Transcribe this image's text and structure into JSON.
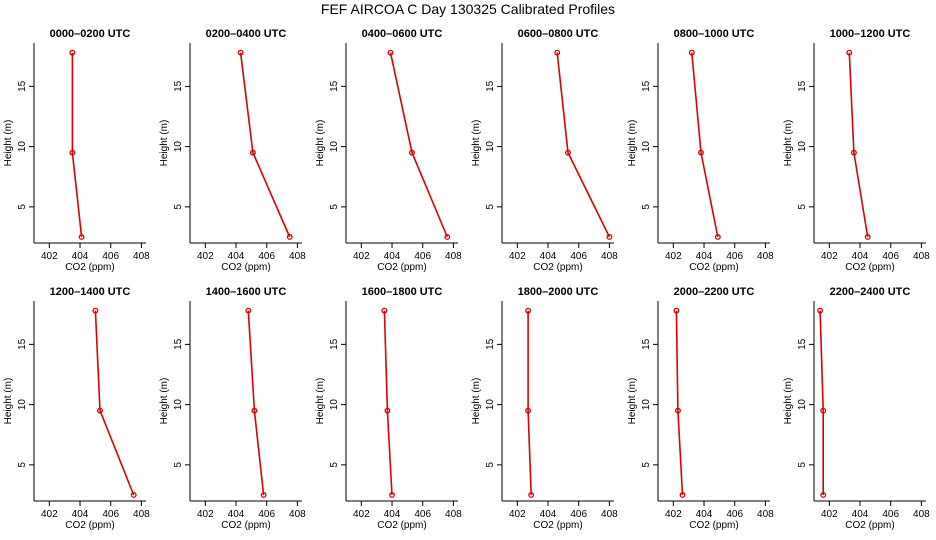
{
  "title": "FEF AIRCOA C  Day 130325  Calibrated Profiles",
  "colors": {
    "profile_line": "#dd0000",
    "axis": "#000000"
  },
  "chart_data": [
    {
      "type": "line",
      "title": "0000–0200 UTC",
      "xlabel": "CO2 (ppm)",
      "ylabel": "Height (m)",
      "xlim": [
        401,
        408.3
      ],
      "ylim": [
        2.0,
        18.6
      ],
      "xticks": [
        "402",
        "404",
        "406",
        "408"
      ],
      "yticks": [
        "5",
        "10",
        "15"
      ],
      "x": [
        404.1,
        403.5,
        403.5
      ],
      "y": [
        2.5,
        9.5,
        17.8
      ]
    },
    {
      "type": "line",
      "title": "0200–0400 UTC",
      "xlabel": "CO2 (ppm)",
      "ylabel": "Height (m)",
      "xlim": [
        401,
        408.3
      ],
      "ylim": [
        2.0,
        18.6
      ],
      "xticks": [
        "402",
        "404",
        "406",
        "408"
      ],
      "yticks": [
        "5",
        "10",
        "15"
      ],
      "x": [
        407.5,
        405.1,
        404.3
      ],
      "y": [
        2.5,
        9.5,
        17.8
      ]
    },
    {
      "type": "line",
      "title": "0400–0600 UTC",
      "xlabel": "CO2 (ppm)",
      "ylabel": "Height (m)",
      "xlim": [
        401,
        408.3
      ],
      "ylim": [
        2.0,
        18.6
      ],
      "xticks": [
        "402",
        "404",
        "406",
        "408"
      ],
      "yticks": [
        "5",
        "10",
        "15"
      ],
      "x": [
        407.6,
        405.3,
        403.9
      ],
      "y": [
        2.5,
        9.5,
        17.8
      ]
    },
    {
      "type": "line",
      "title": "0600–0800 UTC",
      "xlabel": "CO2 (ppm)",
      "ylabel": "Height (m)",
      "xlim": [
        401,
        408.3
      ],
      "ylim": [
        2.0,
        18.6
      ],
      "xticks": [
        "402",
        "404",
        "406",
        "408"
      ],
      "yticks": [
        "5",
        "10",
        "15"
      ],
      "x": [
        408.0,
        405.3,
        404.6
      ],
      "y": [
        2.5,
        9.5,
        17.8
      ]
    },
    {
      "type": "line",
      "title": "0800–1000 UTC",
      "xlabel": "CO2 (ppm)",
      "ylabel": "Height (m)",
      "xlim": [
        401,
        408.3
      ],
      "ylim": [
        2.0,
        18.6
      ],
      "xticks": [
        "402",
        "404",
        "406",
        "408"
      ],
      "yticks": [
        "5",
        "10",
        "15"
      ],
      "x": [
        404.9,
        403.8,
        403.2
      ],
      "y": [
        2.5,
        9.5,
        17.8
      ]
    },
    {
      "type": "line",
      "title": "1000–1200 UTC",
      "xlabel": "CO2 (ppm)",
      "ylabel": "Height (m)",
      "xlim": [
        401,
        408.3
      ],
      "ylim": [
        2.0,
        18.6
      ],
      "xticks": [
        "402",
        "404",
        "406",
        "408"
      ],
      "yticks": [
        "5",
        "10",
        "15"
      ],
      "x": [
        404.5,
        403.6,
        403.3
      ],
      "y": [
        2.5,
        9.5,
        17.8
      ]
    },
    {
      "type": "line",
      "title": "1200–1400 UTC",
      "xlabel": "CO2 (ppm)",
      "ylabel": "Height (m)",
      "xlim": [
        401,
        408.3
      ],
      "ylim": [
        2.0,
        18.6
      ],
      "xticks": [
        "402",
        "404",
        "406",
        "408"
      ],
      "yticks": [
        "5",
        "10",
        "15"
      ],
      "x": [
        407.5,
        405.3,
        405.0
      ],
      "y": [
        2.5,
        9.5,
        17.8
      ]
    },
    {
      "type": "line",
      "title": "1400–1600 UTC",
      "xlabel": "CO2 (ppm)",
      "ylabel": "Height (m)",
      "xlim": [
        401,
        408.3
      ],
      "ylim": [
        2.0,
        18.6
      ],
      "xticks": [
        "402",
        "404",
        "406",
        "408"
      ],
      "yticks": [
        "5",
        "10",
        "15"
      ],
      "x": [
        405.8,
        405.2,
        404.8
      ],
      "y": [
        2.5,
        9.5,
        17.8
      ]
    },
    {
      "type": "line",
      "title": "1600–1800 UTC",
      "xlabel": "CO2 (ppm)",
      "ylabel": "Height (m)",
      "xlim": [
        401,
        408.3
      ],
      "ylim": [
        2.0,
        18.6
      ],
      "xticks": [
        "402",
        "404",
        "406",
        "408"
      ],
      "yticks": [
        "5",
        "10",
        "15"
      ],
      "x": [
        404.0,
        403.7,
        403.5
      ],
      "y": [
        2.5,
        9.5,
        17.8
      ]
    },
    {
      "type": "line",
      "title": "1800–2000 UTC",
      "xlabel": "CO2 (ppm)",
      "ylabel": "Height (m)",
      "xlim": [
        401,
        408.3
      ],
      "ylim": [
        2.0,
        18.6
      ],
      "xticks": [
        "402",
        "404",
        "406",
        "408"
      ],
      "yticks": [
        "5",
        "10",
        "15"
      ],
      "x": [
        402.9,
        402.7,
        402.7
      ],
      "y": [
        2.5,
        9.5,
        17.8
      ]
    },
    {
      "type": "line",
      "title": "2000–2200 UTC",
      "xlabel": "CO2 (ppm)",
      "ylabel": "Height (m)",
      "xlim": [
        401,
        408.3
      ],
      "ylim": [
        2.0,
        18.6
      ],
      "xticks": [
        "402",
        "404",
        "406",
        "408"
      ],
      "yticks": [
        "5",
        "10",
        "15"
      ],
      "x": [
        402.6,
        402.3,
        402.2
      ],
      "y": [
        2.5,
        9.5,
        17.8
      ]
    },
    {
      "type": "line",
      "title": "2200–2400 UTC",
      "xlabel": "CO2 (ppm)",
      "ylabel": "Height (m)",
      "xlim": [
        401,
        408.3
      ],
      "ylim": [
        2.0,
        18.6
      ],
      "xticks": [
        "402",
        "404",
        "406",
        "408"
      ],
      "yticks": [
        "5",
        "10",
        "15"
      ],
      "x": [
        401.6,
        401.6,
        401.4
      ],
      "y": [
        2.5,
        9.5,
        17.8
      ]
    }
  ]
}
